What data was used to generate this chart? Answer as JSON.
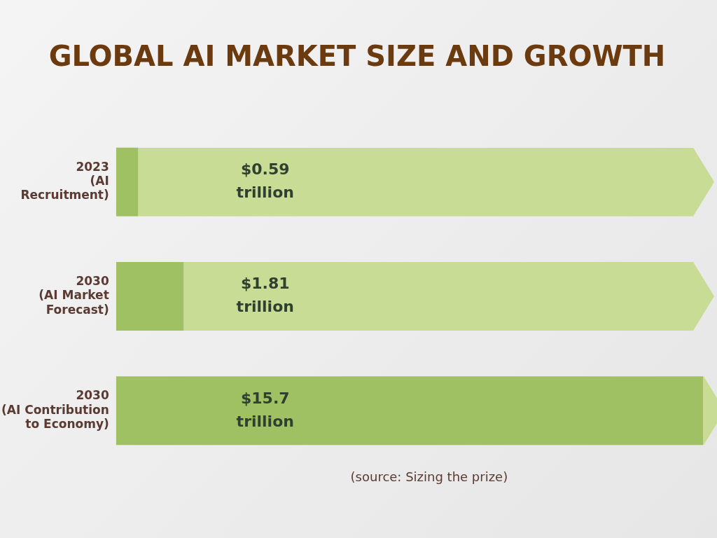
{
  "chart_data": {
    "type": "bar",
    "orientation": "horizontal",
    "title": "GLOBAL AI MARKET SIZE AND GROWTH",
    "categories": [
      "2023\n(AI\nRecruitment)",
      "2030\n(AI Market\nForecast)",
      "2030\n(AI Contribution\nto Economy)"
    ],
    "values": [
      0.59,
      1.81,
      15.7
    ],
    "color": "#a0c064",
    "value_labels": [
      "$0.59 trillion",
      "$1.81 trillion",
      "$15.7 trillion"
    ],
    "annotations": [
      "(source: Sizing the prize)"
    ]
  }
}
